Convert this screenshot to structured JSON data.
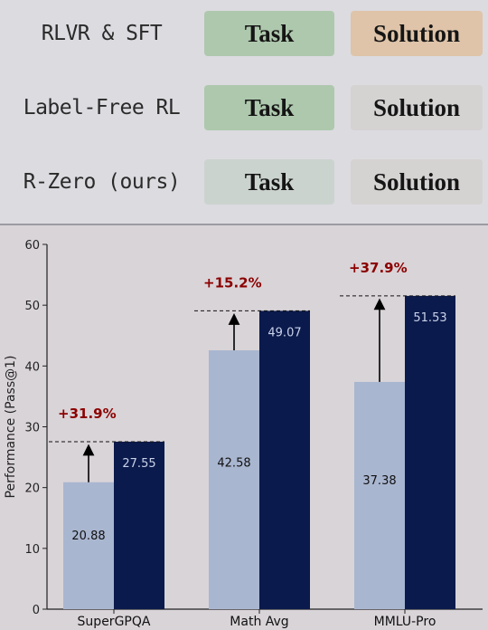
{
  "legend_table": {
    "rows": [
      {
        "label": "RLVR & SFT",
        "task": "Task",
        "solution": "Solution",
        "task_color": "#aec8ad",
        "solution_color": "#dfc4a9"
      },
      {
        "label": "Label-Free RL",
        "task": "Task",
        "solution": "Solution",
        "task_color": "#aec8ad",
        "solution_color": "#d5d2d2"
      },
      {
        "label": "R-Zero (ours)",
        "task": "Task",
        "solution": "Solution",
        "task_color": "#cbd3cf",
        "solution_color": "#d5d2d2"
      }
    ]
  },
  "chart_data": {
    "type": "bar",
    "categories": [
      "SuperGPQA",
      "Math Avg",
      "MMLU-Pro"
    ],
    "series": [
      {
        "values": [
          20.88,
          42.58,
          37.38
        ],
        "color": "#a9b6d0"
      },
      {
        "values": [
          27.55,
          49.07,
          51.53
        ],
        "color": "#0b1a4c"
      }
    ],
    "annotations": [
      "+31.9%",
      "+15.2%",
      "+37.9%"
    ],
    "annotation_color": "#8b0000",
    "ylabel": "Performance (Pass@1)",
    "xlabel": "",
    "ylim": [
      0,
      60
    ],
    "yticks": [
      0,
      10,
      20,
      30,
      40,
      50,
      60
    ],
    "grid": false
  }
}
